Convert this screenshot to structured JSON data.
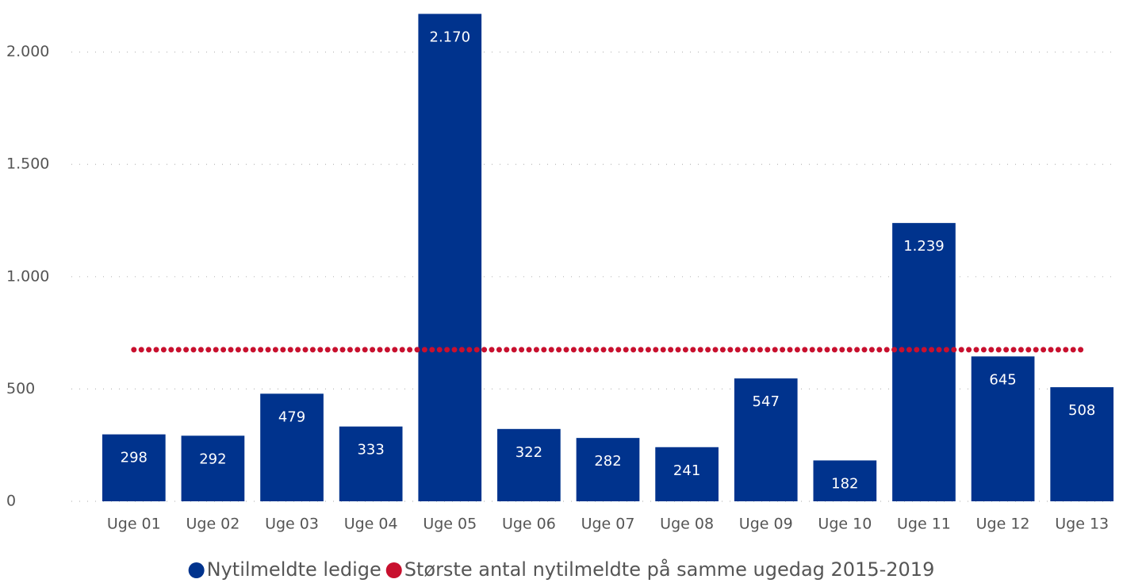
{
  "chart_data": {
    "type": "bar",
    "categories": [
      "Uge 01",
      "Uge 02",
      "Uge 03",
      "Uge 04",
      "Uge 05",
      "Uge 06",
      "Uge 07",
      "Uge 08",
      "Uge 09",
      "Uge 10",
      "Uge 11",
      "Uge 12",
      "Uge 13"
    ],
    "series": [
      {
        "name": "Nytilmeldte ledige",
        "type": "bar",
        "color": "#00338d",
        "values": [
          298,
          292,
          479,
          333,
          2170,
          322,
          282,
          241,
          547,
          182,
          1239,
          645,
          508
        ],
        "value_labels": [
          "298",
          "292",
          "479",
          "333",
          "2.170",
          "322",
          "282",
          "241",
          "547",
          "182",
          "1.239",
          "645",
          "508"
        ]
      },
      {
        "name": "Største antal nytilmeldte på samme ugedag 2015-2019",
        "type": "line",
        "style": "dotted",
        "color": "#c8102e",
        "values": [
          675,
          675,
          675,
          675,
          675,
          675,
          675,
          675,
          675,
          675,
          675,
          675,
          675
        ]
      }
    ],
    "ylim": [
      0,
      2200
    ],
    "yticks": [
      0,
      500,
      {
        "value": 1000,
        "label": "1.000"
      },
      {
        "value": 1500,
        "label": "1.500"
      },
      {
        "value": 2000,
        "label": "2.000"
      }
    ],
    "grid": true,
    "legend": "bottom"
  }
}
